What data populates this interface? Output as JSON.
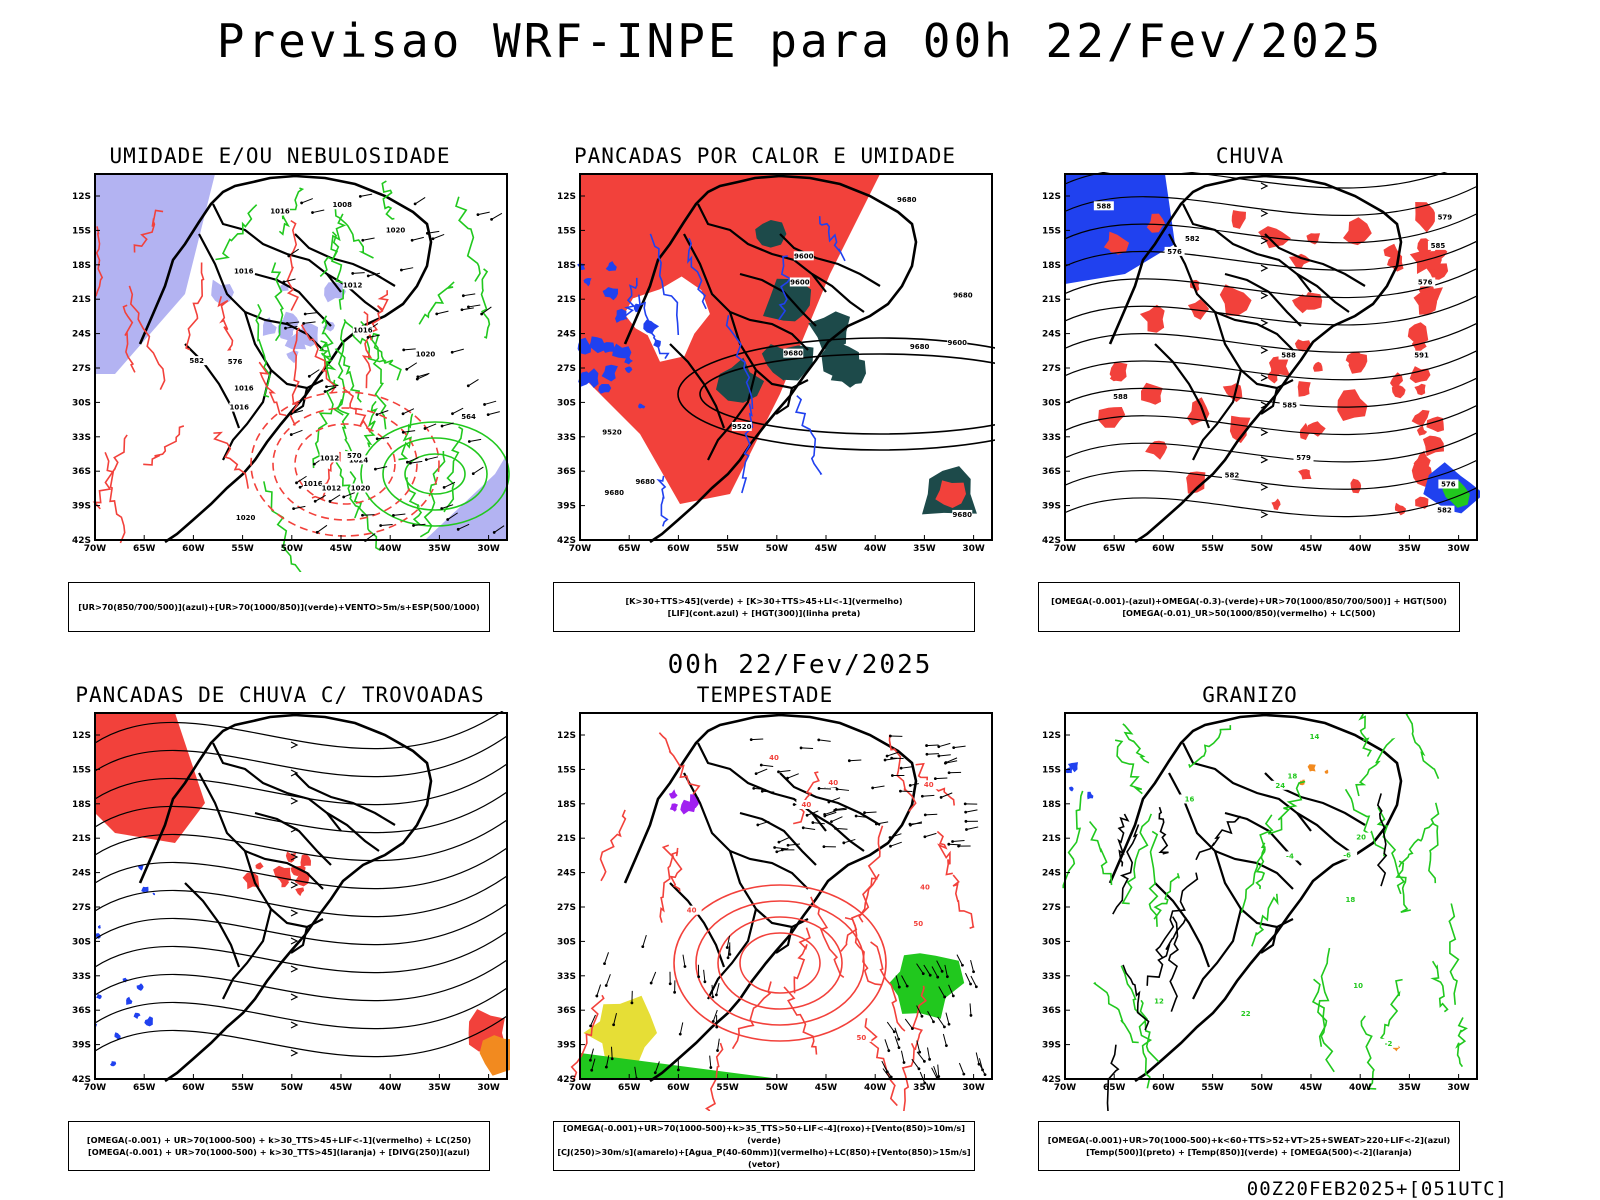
{
  "header": {
    "title": "Previsao WRF-INPE  para 00h 22/Fev/2025"
  },
  "mid_title": "00h 22/Fev/2025",
  "footer": "00Z20FEB2025+[051UTC]",
  "axes": {
    "lat_ticks": [
      "12S",
      "15S",
      "18S",
      "21S",
      "24S",
      "27S",
      "30S",
      "33S",
      "36S",
      "39S",
      "42S"
    ],
    "lon_ticks": [
      "70W",
      "65W",
      "60W",
      "55W",
      "50W",
      "45W",
      "40W",
      "35W",
      "30W"
    ]
  },
  "colors": {
    "red": "#f2413b",
    "green": "#21c81e",
    "blue": "#2041ef",
    "lightblue": "#b3b3f2",
    "darkteal": "#1d4a4a",
    "orange": "#f28a1f",
    "yellow": "#e6de36",
    "purple": "#a020f0"
  },
  "panels": [
    {
      "title": "UMIDADE E/OU NEBULOSIDADE",
      "legend": [
        "[UR>70(850/700/500)](azul)+[UR>70(1000/850)](verde)+VENTO>5m/s+ESP(500/1000)"
      ],
      "labels": [
        "1024",
        "1016",
        "1016",
        "1016",
        "1012",
        "1020",
        "1016",
        "1020",
        "1016",
        "1020",
        "1012",
        "1016",
        "1020",
        "576",
        "570",
        "564",
        "582",
        "1008",
        "1012"
      ]
    },
    {
      "title": "PANCADAS POR CALOR E UMIDADE",
      "legend": [
        "[K>30+TTS>45](verde) + [K>30+TTS>45+LI<-1](vermelho)",
        "[LIF](cont.azul) + [HGT(300)](linha preta)"
      ],
      "labels": [
        "9680",
        "9680",
        "9600",
        "9680",
        "9680",
        "9680",
        "9600",
        "9520",
        "9600",
        "9520",
        "9680",
        "9680"
      ]
    },
    {
      "title": "CHUVA",
      "legend": [
        "[OMEGA(-0.001)-(azul)+OMEGA(-0.3)-(verde)+UR>70(1000/850/700/500)] + HGT(500)",
        "[OMEGA(-0.01)_UR>50(1000/850)(vermelho) + LC(500)"
      ],
      "labels": [
        "588",
        "585",
        "588",
        "582",
        "579",
        "576",
        "576",
        "585",
        "588",
        "582",
        "579",
        "582",
        "591",
        "576"
      ]
    },
    {
      "title": "PANCADAS DE CHUVA C/ TROVOADAS",
      "legend": [
        "[OMEGA(-0.001) + UR>70(1000-500) + k>30_TTS>45+LIF<-1](vermelho) + LC(250)",
        "[OMEGA(-0.001) + UR>70(1000-500) + k>30_TTS>45](laranja) + [DIVG(250)](azul)"
      ],
      "labels": []
    },
    {
      "title": "TEMPESTADE",
      "legend": [
        "[OMEGA(-0.001)+UR>70(1000-500)+k>35_TTS>50+LIF<-4](roxo)+[Vento(850)>10m/s](verde)",
        "[CJ(250)>30m/s](amarelo)+[Agua_P(40-60mm)](vermelho)+LC(850)+[Vento(850)>15m/s](vetor)"
      ],
      "labels": [
        "40",
        "40",
        "40",
        "50",
        "40",
        "40",
        "50",
        "40"
      ]
    },
    {
      "title": "GRANIZO",
      "legend": [
        "[OMEGA(-0.001)+UR>70(1000-500)+k<60+TTS>52+VT>25+SWEAT>220+LIF<-2](azul)",
        "[Temp(500)](preto) + [Temp(850)](verde) + [OMEGA(500)<-2](laranja)"
      ],
      "labels": [
        "-6",
        "-4",
        "-2",
        "10",
        "16",
        "14",
        "12",
        "18",
        "20",
        "22",
        "18",
        "24"
      ]
    }
  ]
}
